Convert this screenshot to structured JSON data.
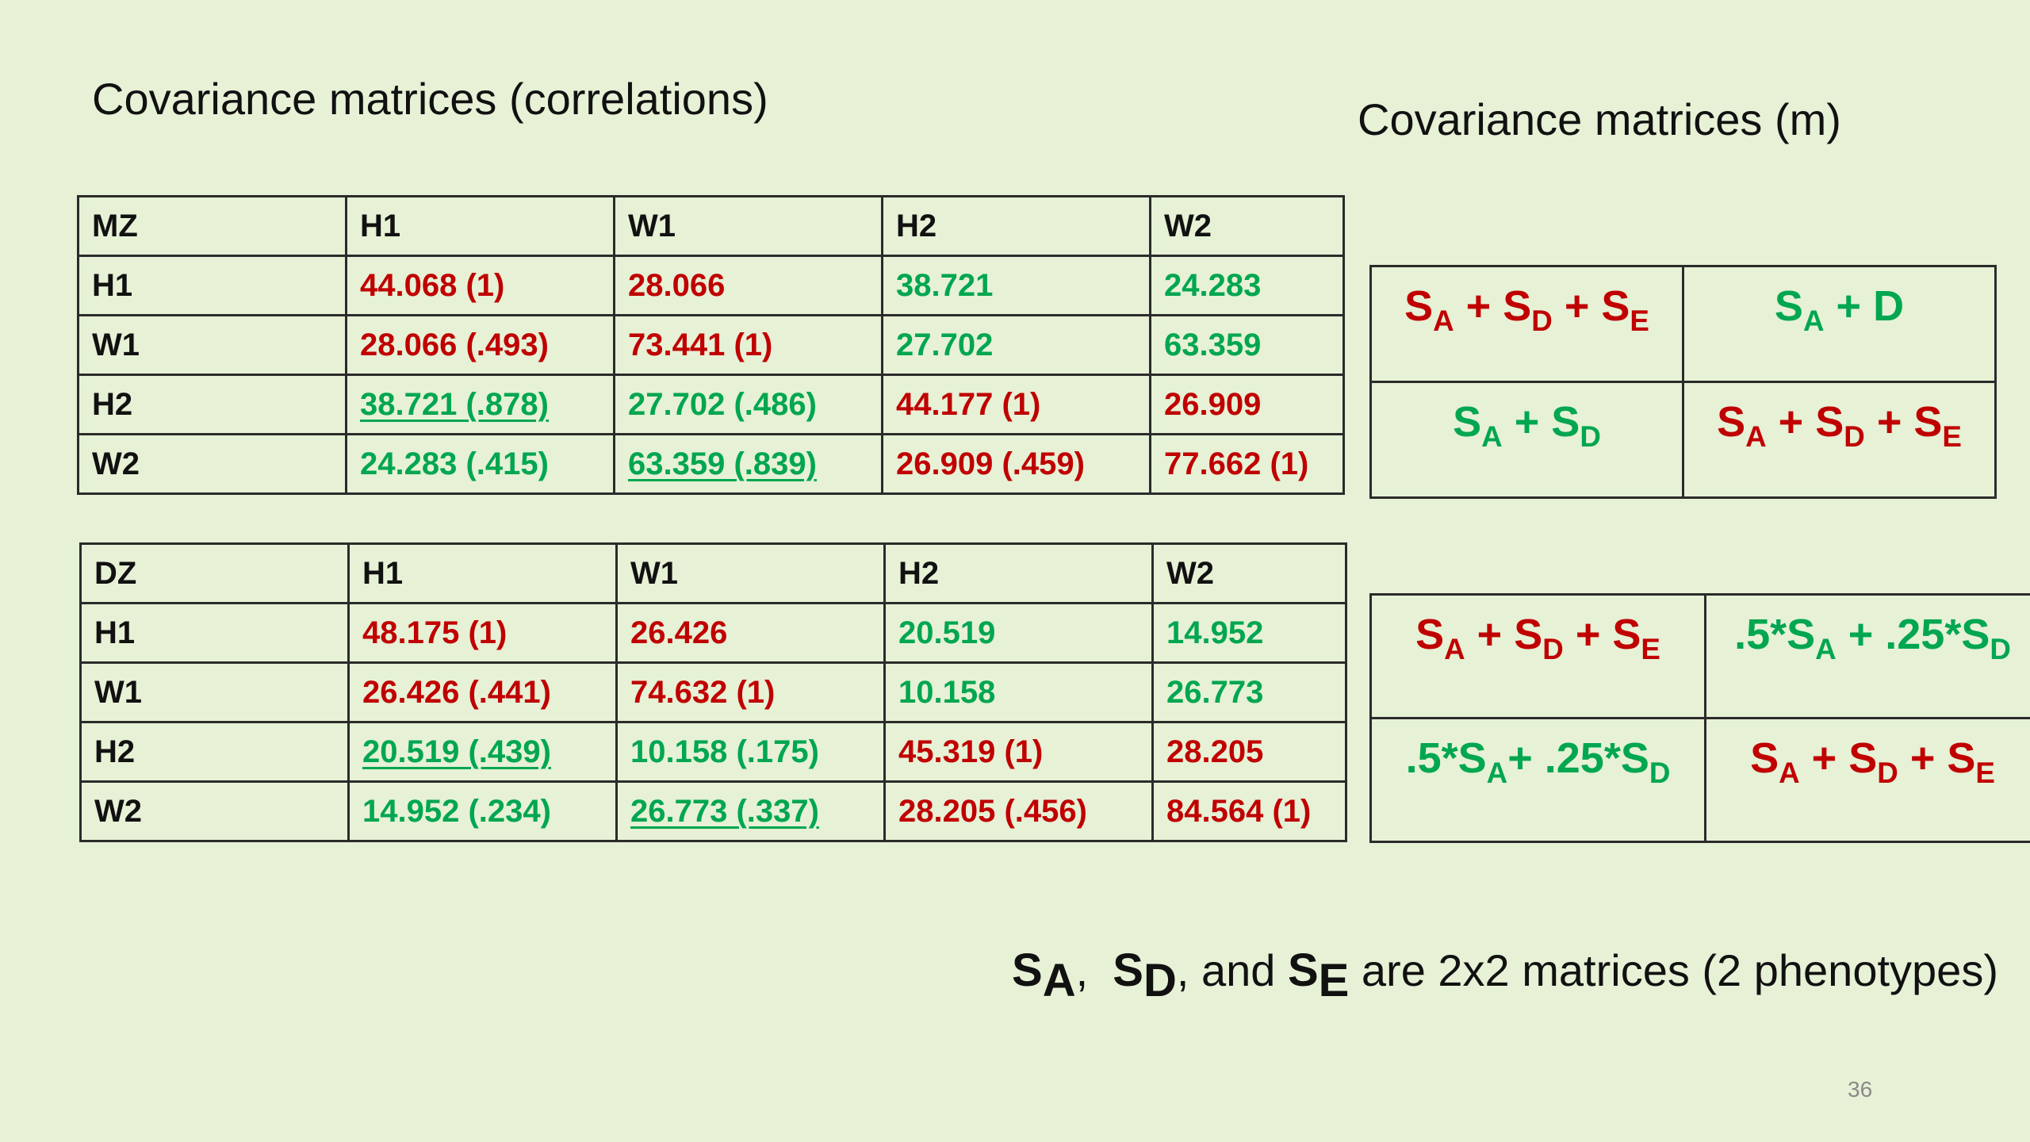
{
  "title_left": "Covariance matrices (correlations)",
  "title_right": "Covariance matrices (m)",
  "colors": {
    "red": "#c00000",
    "green": "#00a650",
    "black": "#111111",
    "background": "#e6f1d6"
  },
  "mz_table": {
    "header": [
      "MZ",
      "H1",
      "W1",
      "H2",
      "W2"
    ],
    "rows": [
      {
        "label": "H1",
        "cells": [
          "44.068 (1)",
          "28.066",
          "38.721",
          "24.283"
        ]
      },
      {
        "label": "W1",
        "cells": [
          "28.066 (.493)",
          "73.441 (1)",
          "27.702",
          "63.359"
        ]
      },
      {
        "label": "H2",
        "cells": [
          "38.721 (.878)",
          "27.702 (.486)",
          "44.177 (1)",
          "26.909"
        ]
      },
      {
        "label": "W2",
        "cells": [
          "24.283 (.415)",
          "63.359 (.839)",
          "26.909 (.459)",
          "77.662 (1)"
        ]
      }
    ]
  },
  "dz_table": {
    "header": [
      "DZ",
      "H1",
      "W1",
      "H2",
      "W2"
    ],
    "rows": [
      {
        "label": "H1",
        "cells": [
          "48.175 (1)",
          "26.426",
          "20.519",
          "14.952"
        ]
      },
      {
        "label": "W1",
        "cells": [
          "26.426 (.441)",
          "74.632 (1)",
          "10.158",
          "26.773"
        ]
      },
      {
        "label": "H2",
        "cells": [
          "20.519 (.439)",
          "10.158 (.175)",
          "45.319 (1)",
          "28.205"
        ]
      },
      {
        "label": "W2",
        "cells": [
          "14.952 (.234)",
          "26.773 (.337)",
          "28.205 (.456)",
          "84.564 (1)"
        ]
      }
    ]
  },
  "formula_mz": {
    "plus": "+",
    "S": "S",
    "A": "A",
    "D": "D",
    "E": "E",
    "D_plain": "D"
  },
  "formula_dz": {
    "half": ".5*",
    "quarter": ".25*",
    "plus": "+"
  },
  "footnote": {
    "S": "S",
    "A": "A",
    "D": "D",
    "E": "E",
    "comma": ",",
    "and": "and",
    "rest": "are 2x2 matrices (2 phenotypes)"
  },
  "page_number": "36"
}
